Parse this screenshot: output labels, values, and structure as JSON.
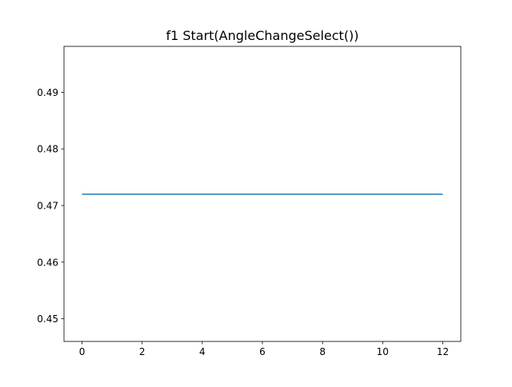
{
  "chart_data": {
    "type": "line",
    "title": "f1 Start(AngleChangeSelect())",
    "xlabel": "",
    "ylabel": "",
    "xlim": [
      -0.6,
      12.6
    ],
    "ylim": [
      0.446,
      0.4981
    ],
    "x_ticks": [
      0,
      2,
      4,
      6,
      8,
      10,
      12
    ],
    "x_tick_labels": [
      "0",
      "2",
      "4",
      "6",
      "8",
      "10",
      "12"
    ],
    "y_ticks": [
      0.45,
      0.46,
      0.47,
      0.48,
      0.49
    ],
    "y_tick_labels": [
      "0.45",
      "0.46",
      "0.47",
      "0.48",
      "0.49"
    ],
    "grid": false,
    "series": [
      {
        "color": "#1f77b4",
        "x": [
          0,
          12
        ],
        "y": [
          0.472,
          0.472
        ]
      }
    ]
  }
}
